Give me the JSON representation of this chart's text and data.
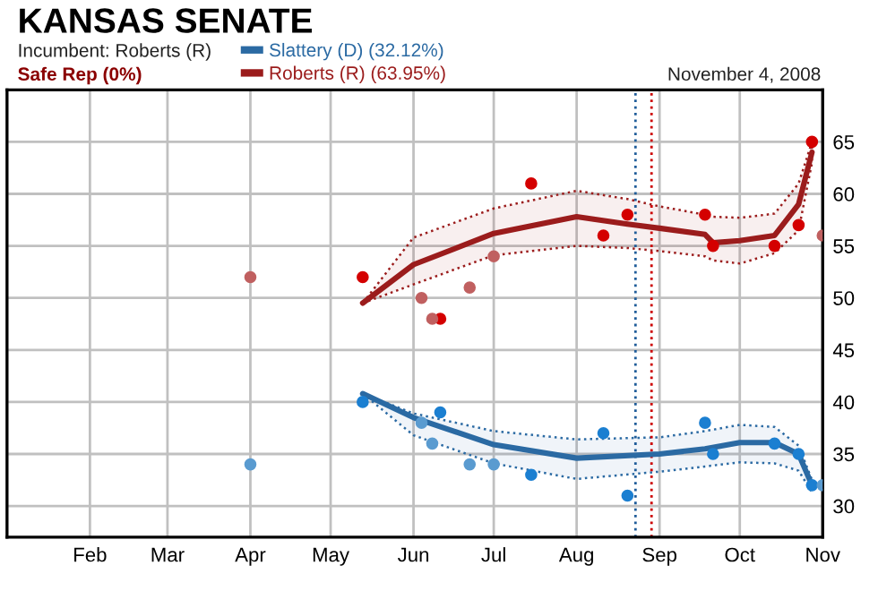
{
  "chart_data": {
    "type": "scatter",
    "title": "KANSAS SENATE",
    "annotations": [
      "Incumbent: Roberts (R)",
      "Safe Rep (0%)",
      "November 4, 2008"
    ],
    "xlim": [
      "2008-01-01",
      "2008-11-01"
    ],
    "xticks": [
      {
        "value": "2008-02-01",
        "label": "Feb"
      },
      {
        "value": "2008-03-01",
        "label": "Mar"
      },
      {
        "value": "2008-04-01",
        "label": "Apr"
      },
      {
        "value": "2008-05-01",
        "label": "May"
      },
      {
        "value": "2008-06-01",
        "label": "Jun"
      },
      {
        "value": "2008-07-01",
        "label": "Jul"
      },
      {
        "value": "2008-08-01",
        "label": "Aug"
      },
      {
        "value": "2008-09-01",
        "label": "Sep"
      },
      {
        "value": "2008-10-01",
        "label": "Oct"
      },
      {
        "value": "2008-11-01",
        "label": "Nov"
      }
    ],
    "ylim": [
      27,
      70
    ],
    "yticks": [
      30,
      35,
      40,
      45,
      50,
      55,
      60,
      65
    ],
    "grid": true,
    "legend": "top",
    "ref_lines": [
      {
        "axis": "x",
        "value": "2008-08-23",
        "color": "#1f5c99",
        "line_style": "dotted"
      },
      {
        "axis": "x",
        "value": "2008-08-29",
        "color": "#cc0000",
        "line_style": "dotted"
      }
    ],
    "series": [
      {
        "type": "line",
        "name": "Slattery (D) (32.12%)",
        "color": "#2b6aa3",
        "marker": "none",
        "x": [
          "2008-05-13",
          "2008-06-01",
          "2008-07-01",
          "2008-08-01",
          "2008-09-01",
          "2008-09-18",
          "2008-10-01",
          "2008-10-14",
          "2008-10-23",
          "2008-10-28"
        ],
        "values": [
          40.8,
          38.5,
          35.9,
          34.6,
          35,
          35.5,
          36.1,
          36.1,
          35,
          32
        ],
        "upper": [
          40.8,
          38.9,
          37.2,
          36.4,
          36.6,
          37.2,
          37.8,
          37.6,
          35.8,
          32.5
        ],
        "lower": [
          40.8,
          36.8,
          34.1,
          32.6,
          33.3,
          33.8,
          34.2,
          34.1,
          33.4,
          31.3
        ]
      },
      {
        "type": "line",
        "name": "Roberts (R) (63.95%)",
        "color": "#9b1c1c",
        "marker": "none",
        "x": [
          "2008-05-13",
          "2008-06-01",
          "2008-07-01",
          "2008-08-01",
          "2008-08-20",
          "2008-09-01",
          "2008-09-18",
          "2008-09-21",
          "2008-10-01",
          "2008-10-14",
          "2008-10-23",
          "2008-10-28"
        ],
        "values": [
          49.5,
          53.2,
          56.2,
          57.8,
          57.1,
          56.7,
          56.1,
          55.3,
          55.5,
          56,
          59,
          64
        ],
        "upper": [
          49.5,
          55.8,
          58.6,
          60.3,
          59.5,
          58.8,
          58,
          57.8,
          57.7,
          58.1,
          61,
          65
        ],
        "lower": [
          49.5,
          51.3,
          54.1,
          55,
          54.8,
          54.5,
          54,
          53.6,
          53.3,
          54.3,
          56.5,
          63
        ]
      },
      {
        "color": "#1b7fd1",
        "marker": "circle",
        "x": [
          "2008-05-13",
          "2008-06-11",
          "2008-07-15",
          "2008-08-11",
          "2008-08-20",
          "2008-09-18",
          "2008-09-21",
          "2008-10-14",
          "2008-10-23",
          "2008-10-28"
        ],
        "values": [
          40,
          39,
          33,
          37,
          31,
          38,
          35,
          36,
          35,
          32
        ]
      },
      {
        "color": "#5a9bd0",
        "marker": "circle",
        "x": [
          "2008-04-01",
          "2008-06-04",
          "2008-06-08",
          "2008-06-22",
          "2008-07-01",
          "2008-11-01"
        ],
        "values": [
          34,
          38,
          36,
          34,
          34,
          32
        ]
      },
      {
        "color": "#d40000",
        "marker": "circle",
        "x": [
          "2008-05-13",
          "2008-06-11",
          "2008-07-15",
          "2008-08-11",
          "2008-08-20",
          "2008-09-18",
          "2008-09-21",
          "2008-10-14",
          "2008-10-23",
          "2008-10-28"
        ],
        "values": [
          52,
          48,
          61,
          56,
          58,
          58,
          55,
          55,
          57,
          65
        ]
      },
      {
        "color": "#c06060",
        "marker": "circle",
        "x": [
          "2008-04-01",
          "2008-06-04",
          "2008-06-08",
          "2008-06-22",
          "2008-07-01",
          "2008-11-01"
        ],
        "values": [
          52,
          50,
          48,
          51,
          54,
          56
        ]
      }
    ]
  }
}
